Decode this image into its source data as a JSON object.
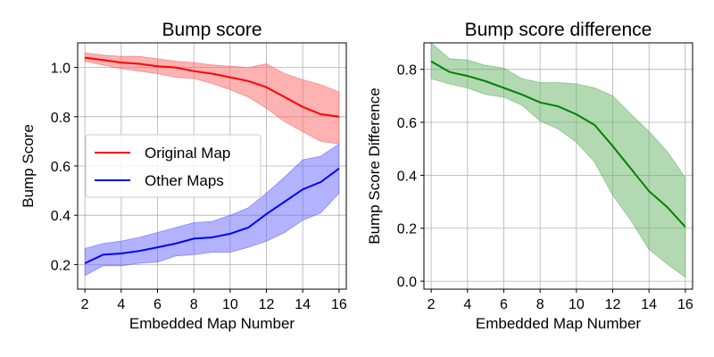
{
  "chart_data": [
    {
      "type": "line",
      "title": "Bump score",
      "xlabel": "Embedded Map Number",
      "ylabel": "Bump Score",
      "xlim": [
        1.6,
        16.4
      ],
      "ylim": [
        0.1,
        1.1
      ],
      "xticks": [
        2,
        4,
        6,
        8,
        10,
        12,
        14,
        16
      ],
      "yticks": [
        0.2,
        0.4,
        0.6,
        0.8,
        1.0
      ],
      "ytick_labels": [
        "0.2",
        "0.4",
        "0.6",
        "0.8",
        "1.0"
      ],
      "grid": true,
      "legend": "center-left",
      "x": [
        2,
        3,
        4,
        5,
        6,
        7,
        8,
        9,
        10,
        11,
        12,
        13,
        14,
        15,
        16
      ],
      "series": [
        {
          "name": "Original Map",
          "color": "#ff0000",
          "band_color": "#ff6666",
          "values": [
            1.04,
            1.03,
            1.02,
            1.015,
            1.005,
            1.0,
            0.985,
            0.975,
            0.96,
            0.945,
            0.92,
            0.88,
            0.84,
            0.81,
            0.8
          ],
          "upper": [
            1.06,
            1.05,
            1.045,
            1.045,
            1.035,
            1.025,
            1.02,
            1.01,
            1.005,
            1.0,
            1.015,
            0.975,
            0.95,
            0.93,
            0.9
          ],
          "lower": [
            1.025,
            1.01,
            0.995,
            0.985,
            0.975,
            0.96,
            0.955,
            0.935,
            0.91,
            0.88,
            0.835,
            0.78,
            0.74,
            0.7,
            0.69
          ]
        },
        {
          "name": "Other Maps",
          "color": "#0000ff",
          "band_color": "#6666ff",
          "values": [
            0.205,
            0.24,
            0.245,
            0.255,
            0.27,
            0.285,
            0.305,
            0.31,
            0.325,
            0.35,
            0.405,
            0.455,
            0.505,
            0.535,
            0.59
          ],
          "upper": [
            0.265,
            0.285,
            0.295,
            0.31,
            0.33,
            0.35,
            0.37,
            0.375,
            0.4,
            0.43,
            0.49,
            0.555,
            0.625,
            0.64,
            0.69
          ],
          "lower": [
            0.155,
            0.195,
            0.195,
            0.205,
            0.21,
            0.235,
            0.24,
            0.25,
            0.25,
            0.27,
            0.295,
            0.33,
            0.38,
            0.41,
            0.49
          ]
        }
      ]
    },
    {
      "type": "line",
      "title": "Bump score difference",
      "xlabel": "Embedded Map Number",
      "ylabel": "Bump Score Difference",
      "xlim": [
        1.6,
        16.4
      ],
      "ylim": [
        -0.03,
        0.9
      ],
      "xticks": [
        2,
        4,
        6,
        8,
        10,
        12,
        14,
        16
      ],
      "yticks": [
        0.0,
        0.2,
        0.4,
        0.6,
        0.8
      ],
      "ytick_labels": [
        "0.0",
        "0.2",
        "0.4",
        "0.6",
        "0.8"
      ],
      "grid": true,
      "x": [
        2,
        3,
        4,
        5,
        6,
        7,
        8,
        9,
        10,
        11,
        12,
        13,
        14,
        15,
        16
      ],
      "series": [
        {
          "color": "#008000",
          "band_color": "#66b366",
          "values": [
            0.83,
            0.79,
            0.775,
            0.755,
            0.73,
            0.705,
            0.675,
            0.66,
            0.63,
            0.59,
            0.51,
            0.425,
            0.34,
            0.28,
            0.205
          ],
          "upper": [
            0.9,
            0.84,
            0.835,
            0.815,
            0.805,
            0.765,
            0.75,
            0.75,
            0.745,
            0.73,
            0.7,
            0.63,
            0.565,
            0.49,
            0.39
          ],
          "lower": [
            0.765,
            0.745,
            0.73,
            0.705,
            0.695,
            0.665,
            0.605,
            0.575,
            0.525,
            0.45,
            0.325,
            0.23,
            0.12,
            0.065,
            0.015
          ]
        }
      ]
    }
  ]
}
